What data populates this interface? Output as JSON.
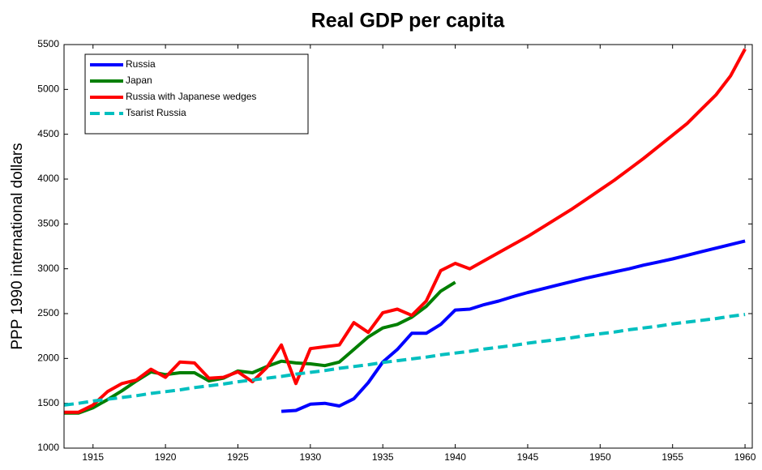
{
  "chart_data": {
    "type": "line",
    "title": "Real GDP per capita",
    "y_label": "PPP 1990 international dollars",
    "x": [
      1913,
      1914,
      1915,
      1916,
      1917,
      1918,
      1919,
      1920,
      1921,
      1922,
      1923,
      1924,
      1925,
      1926,
      1927,
      1928,
      1929,
      1930,
      1931,
      1932,
      1933,
      1934,
      1935,
      1936,
      1937,
      1938,
      1939,
      1940,
      1941,
      1942,
      1943,
      1944,
      1945,
      1946,
      1947,
      1948,
      1949,
      1950,
      1951,
      1952,
      1953,
      1954,
      1955,
      1956,
      1957,
      1958,
      1959,
      1960
    ],
    "series": [
      {
        "name": "Russia",
        "color": "#0000ff",
        "dashed": false,
        "values": [
          null,
          null,
          null,
          null,
          null,
          null,
          null,
          null,
          null,
          null,
          null,
          null,
          null,
          null,
          null,
          1410,
          1420,
          1490,
          1500,
          1470,
          1550,
          1730,
          1960,
          2100,
          2280,
          2280,
          2380,
          2540,
          2550,
          2600,
          2640,
          2690,
          2735,
          2775,
          2815,
          2855,
          2895,
          2930,
          2965,
          3000,
          3040,
          3075,
          3110,
          3150,
          3190,
          3230,
          3270,
          3310
        ]
      },
      {
        "name": "Japan",
        "color": "#007f00",
        "dashed": false,
        "values": [
          1390,
          1390,
          1450,
          1540,
          1640,
          1750,
          1850,
          1820,
          1840,
          1840,
          1750,
          1780,
          1860,
          1840,
          1910,
          1970,
          1950,
          1940,
          1920,
          1960,
          2100,
          2240,
          2340,
          2380,
          2460,
          2580,
          2750,
          2850,
          null,
          null,
          null,
          null,
          null,
          null,
          null,
          null,
          null,
          null,
          null,
          null,
          null,
          null,
          null,
          null,
          null,
          null,
          null,
          null
        ]
      },
      {
        "name": "Russia with Japanese wedges",
        "color": "#ff0000",
        "dashed": false,
        "values": [
          1400,
          1400,
          1480,
          1630,
          1720,
          1760,
          1880,
          1790,
          1960,
          1950,
          1780,
          1790,
          1850,
          1740,
          1900,
          2150,
          1720,
          2110,
          2130,
          2150,
          2400,
          2290,
          2510,
          2550,
          2480,
          2640,
          2980,
          3060,
          3000,
          3090,
          3180,
          3270,
          3360,
          3460,
          3560,
          3660,
          3770,
          3880,
          3990,
          4110,
          4230,
          4360,
          4490,
          4620,
          4780,
          4940,
          5150,
          5450
        ]
      },
      {
        "name": "Tsarist Russia",
        "color": "#00bfbf",
        "dashed": true,
        "values": [
          1480,
          1500,
          1525,
          1545,
          1565,
          1585,
          1610,
          1630,
          1650,
          1675,
          1695,
          1715,
          1740,
          1760,
          1780,
          1800,
          1825,
          1845,
          1865,
          1890,
          1910,
          1930,
          1955,
          1975,
          1995,
          2015,
          2040,
          2060,
          2080,
          2105,
          2125,
          2145,
          2170,
          2190,
          2210,
          2230,
          2255,
          2275,
          2295,
          2320,
          2340,
          2360,
          2385,
          2405,
          2425,
          2445,
          2470,
          2490
        ]
      }
    ],
    "xlim": [
      1913,
      1960.5
    ],
    "xticks": [
      1915,
      1920,
      1925,
      1930,
      1935,
      1940,
      1945,
      1950,
      1955,
      1960
    ],
    "ylim": [
      1000,
      5500
    ],
    "yticks": [
      1000,
      1500,
      2000,
      2500,
      3000,
      3500,
      4000,
      4500,
      5000,
      5500
    ],
    "grid": false,
    "legend": "upper left"
  }
}
